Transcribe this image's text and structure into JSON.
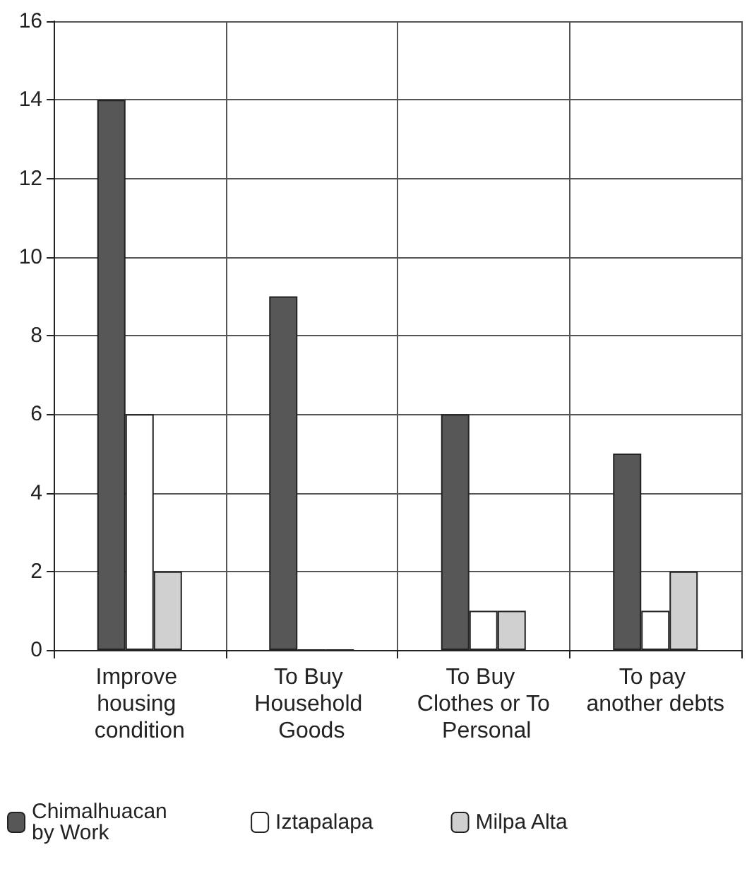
{
  "chart_data": {
    "type": "bar",
    "categories": [
      "Improve housing condition",
      "To Buy Household Goods",
      "To Buy Clothes or To Personal",
      "To pay another debts"
    ],
    "series": [
      {
        "name": "Chimalhuacan by Work",
        "color": "#575757",
        "values": [
          14,
          9,
          6,
          5
        ]
      },
      {
        "name": "Iztapalapa",
        "color": "#ffffff",
        "values": [
          6,
          0,
          1,
          1
        ]
      },
      {
        "name": "Milpa Alta",
        "color": "#d0d0d0",
        "values": [
          2,
          0,
          1,
          2
        ]
      }
    ],
    "ylim": [
      0,
      16
    ],
    "yticks": [
      0,
      2,
      4,
      6,
      8,
      10,
      12,
      14,
      16
    ],
    "grid": true,
    "legend": "bottom"
  }
}
